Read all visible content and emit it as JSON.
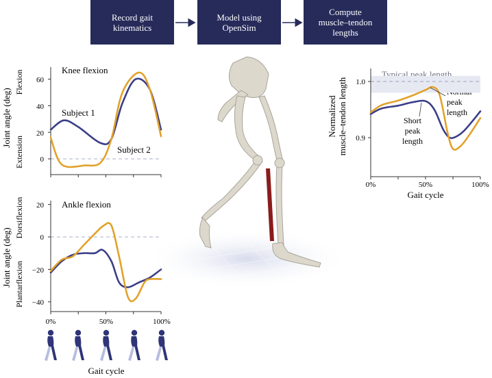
{
  "workflow": {
    "steps": [
      "Record gait\nkinematics",
      "Model using\nOpenSim",
      "Compute\nmuscle–tendon\nlengths"
    ]
  },
  "colors": {
    "subject1": "#3a3e86",
    "subject2": "#e2a12a",
    "flow_box": "#262b5a",
    "muscle": "#8a1c1c",
    "band": "#e6e9f2"
  },
  "knee_panel": {
    "title": "Knee flexion",
    "ylabel": "Joint angle (deg)",
    "flexion_label": "Flexion",
    "extension_label": "Extension",
    "yticks": [
      "60",
      "40",
      "20",
      "0"
    ],
    "subject1_label": "Subject 1",
    "subject2_label": "Subject 2"
  },
  "ankle_panel": {
    "title": "Ankle flexion",
    "ylabel": "Joint angle (deg)",
    "dorsiflexion_label": "Dorsiflexion",
    "plantarflexion_label": "Plantarflexion",
    "yticks": [
      "20",
      "0",
      "−20",
      "−40"
    ],
    "xticks": [
      "0%",
      "50%",
      "100%"
    ],
    "xlabel": "Gait cycle"
  },
  "length_panel": {
    "ylabel_line1": "Normalized",
    "ylabel_line2": "muscle–tendon length",
    "yticks": [
      "1.0",
      "0.9"
    ],
    "xticks": [
      "0%",
      "50%",
      "100%"
    ],
    "xlabel": "Gait cycle",
    "band_label": "Typical peak length",
    "normal_label_lines": [
      "Normal",
      "peak",
      "length"
    ],
    "short_label_lines": [
      "Short",
      "peak",
      "length"
    ]
  },
  "chart_data": [
    {
      "type": "line",
      "title": "Knee flexion",
      "ylabel": "Joint angle (deg)",
      "xlim": [
        0,
        100
      ],
      "ylim": [
        -10,
        70
      ],
      "series": [
        {
          "name": "Subject 1",
          "x": [
            0,
            12,
            25,
            45,
            55,
            65,
            77,
            90,
            100
          ],
          "y": [
            22,
            29,
            24,
            12,
            15,
            42,
            60,
            52,
            22
          ]
        },
        {
          "name": "Subject 2",
          "x": [
            0,
            7,
            15,
            30,
            45,
            55,
            65,
            80,
            90,
            100
          ],
          "y": [
            16,
            -1,
            -6,
            -5,
            -3,
            15,
            50,
            65,
            52,
            17
          ]
        }
      ]
    },
    {
      "type": "line",
      "title": "Ankle flexion",
      "ylabel": "Joint angle (deg)",
      "xlabel": "Gait cycle",
      "xlim": [
        0,
        100
      ],
      "ylim": [
        -45,
        20
      ],
      "series": [
        {
          "name": "Subject 1",
          "x": [
            0,
            10,
            20,
            30,
            40,
            47,
            55,
            62,
            70,
            80,
            90,
            100
          ],
          "y": [
            -22,
            -15,
            -11,
            -10,
            -10,
            -8,
            -15,
            -28,
            -31,
            -28,
            -25,
            -20
          ]
        },
        {
          "name": "Subject 2",
          "x": [
            0,
            10,
            20,
            30,
            40,
            48,
            55,
            62,
            70,
            77,
            85,
            90,
            100
          ],
          "y": [
            -21,
            -14,
            -12,
            -5,
            2,
            7,
            7,
            -12,
            -37,
            -38,
            -28,
            -26,
            -26
          ]
        }
      ]
    },
    {
      "type": "line",
      "xlabel": "Gait cycle",
      "ylabel": "Normalized muscle–tendon length",
      "xlim": [
        0,
        100
      ],
      "ylim": [
        0.85,
        1.03
      ],
      "series": [
        {
          "name": "Short peak length",
          "x": [
            0,
            10,
            25,
            38,
            50,
            58,
            66,
            72,
            78,
            85,
            93,
            100
          ],
          "y": [
            0.942,
            0.952,
            0.957,
            0.963,
            0.965,
            0.95,
            0.915,
            0.9,
            0.902,
            0.912,
            0.93,
            0.947
          ]
        },
        {
          "name": "Normal peak length",
          "x": [
            0,
            10,
            25,
            38,
            50,
            57,
            63,
            70,
            75,
            82,
            90,
            100
          ],
          "y": [
            0.945,
            0.958,
            0.966,
            0.975,
            0.985,
            0.99,
            0.975,
            0.91,
            0.88,
            0.885,
            0.905,
            0.935
          ]
        }
      ],
      "band": {
        "label": "Typical peak length",
        "y_range": [
          0.98,
          1.01
        ],
        "line_at": 1.0
      }
    }
  ]
}
